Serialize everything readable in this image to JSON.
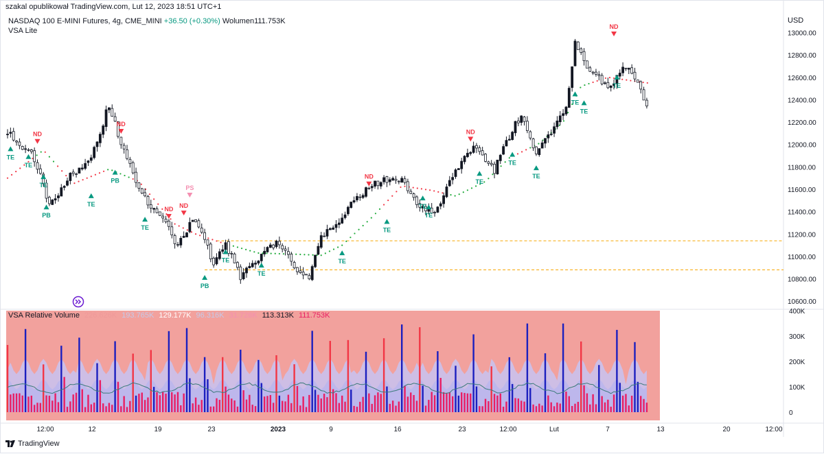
{
  "watermark": "szakal opublikował TradingView.com, Lut 12, 2023 18:51 UTC+1",
  "legend": {
    "symbol_line": "NASDAQ 100 E-MINI Futures, 4g, CME_MINI",
    "change": "+36.50 (+0.30%)",
    "volume": "Wolumen111.753K",
    "indicator": "VSA Lite"
  },
  "currency": "USD",
  "footer": {
    "brand": "TradingView"
  },
  "volume_pane": {
    "title": "VSA Relative Volume",
    "values": [
      "226.626K",
      "193.765K",
      "129.177K",
      "96.316K",
      "31.728K",
      "113.313K",
      "111.753K"
    ],
    "value_colors": [
      "#ef9a9a",
      "#c5cae9",
      "#ffffff",
      "#c5cae9",
      "#f48fb1",
      "#131722",
      "#e91e63"
    ]
  },
  "colors": {
    "up_candle": "#131722",
    "down_candle": "#ffffff",
    "ema_down": "#f23645",
    "ema_up": "#22ab3c",
    "support_line": "#f7a600",
    "te_label": "#089981",
    "nd_label": "#f23645",
    "ps_label": "#f48fb1",
    "vol_bg": "#f2a19d",
    "vol_band": "#c8c3f2",
    "vol_high": "#1b1fbf",
    "vol_red": "#f23645",
    "vol_pink": "#e91e63",
    "vol_ma": "#3b7a7a"
  },
  "chart_data": {
    "type": "candlestick",
    "price_axis": {
      "ticks": [
        "13000.00",
        "12800.00",
        "12600.00",
        "12400.00",
        "12200.00",
        "12000.00",
        "11800.00",
        "11600.00",
        "11400.00",
        "11200.00",
        "11000.00",
        "10800.00",
        "10600.00"
      ],
      "ylim": [
        10540,
        13150
      ]
    },
    "volume_axis": {
      "ticks": [
        "400K",
        "300K",
        "200K",
        "100K",
        "0"
      ],
      "ylim": [
        0,
        400000
      ]
    },
    "time_axis": [
      "12:00",
      "12",
      "19",
      "23",
      "2023",
      "9",
      "16",
      "23",
      "12:00",
      "Lut",
      "7",
      "13",
      "20",
      "12:00"
    ],
    "price_path": [
      [
        0,
        12100
      ],
      [
        5,
        11980
      ],
      [
        9,
        11880
      ],
      [
        14,
        11450
      ],
      [
        20,
        11700
      ],
      [
        28,
        11880
      ],
      [
        34,
        12360
      ],
      [
        38,
        12020
      ],
      [
        43,
        11650
      ],
      [
        48,
        11430
      ],
      [
        53,
        11280
      ],
      [
        57,
        11100
      ],
      [
        62,
        11340
      ],
      [
        66,
        11130
      ],
      [
        69,
        10950
      ],
      [
        73,
        11120
      ],
      [
        78,
        10820
      ],
      [
        84,
        10980
      ],
      [
        90,
        11130
      ],
      [
        96,
        10920
      ],
      [
        101,
        10800
      ],
      [
        105,
        11180
      ],
      [
        110,
        11300
      ],
      [
        117,
        11530
      ],
      [
        125,
        11680
      ],
      [
        132,
        11700
      ],
      [
        138,
        11450
      ],
      [
        143,
        11380
      ],
      [
        150,
        11760
      ],
      [
        156,
        12000
      ],
      [
        163,
        11770
      ],
      [
        168,
        12080
      ],
      [
        172,
        12270
      ],
      [
        177,
        11930
      ],
      [
        182,
        12120
      ],
      [
        187,
        12320
      ],
      [
        190,
        12930
      ],
      [
        195,
        12650
      ],
      [
        202,
        12520
      ],
      [
        206,
        12720
      ],
      [
        210,
        12610
      ],
      [
        214,
        12320
      ]
    ],
    "ema_path": [
      [
        0,
        11700
      ],
      [
        12,
        11950
      ],
      [
        22,
        11650
      ],
      [
        34,
        11780
      ],
      [
        44,
        11670
      ],
      [
        56,
        11290
      ],
      [
        63,
        11200
      ],
      [
        72,
        11120
      ],
      [
        84,
        11030
      ],
      [
        96,
        11020
      ],
      [
        105,
        11010
      ],
      [
        112,
        11100
      ],
      [
        122,
        11350
      ],
      [
        132,
        11630
      ],
      [
        142,
        11590
      ],
      [
        150,
        11540
      ],
      [
        160,
        11670
      ],
      [
        168,
        11880
      ],
      [
        178,
        12010
      ],
      [
        186,
        12200
      ],
      [
        192,
        12520
      ],
      [
        201,
        12600
      ],
      [
        214,
        12550
      ]
    ],
    "ema_turns_red_at": [
      [
        0,
        9
      ],
      [
        12,
        13
      ],
      [
        16,
        33
      ],
      [
        42,
        74
      ],
      [
        126,
        146
      ],
      [
        170,
        174
      ],
      [
        196,
        214
      ]
    ],
    "support_levels": [
      {
        "price": 11140,
        "from": 70,
        "to": 214
      },
      {
        "price": 10880,
        "from": 66,
        "to": 214
      }
    ],
    "signals": [
      {
        "label": "TE",
        "bar": 1,
        "price": 11990,
        "dir": "up"
      },
      {
        "label": "TE",
        "bar": 7,
        "price": 11920,
        "dir": "up"
      },
      {
        "label": "ND",
        "bar": 10,
        "price": 12000,
        "dir": "down"
      },
      {
        "label": "TE",
        "bar": 12,
        "price": 11740,
        "dir": "up"
      },
      {
        "label": "PB",
        "bar": 13,
        "price": 11470,
        "dir": "up"
      },
      {
        "label": "TE",
        "bar": 28,
        "price": 11570,
        "dir": "up"
      },
      {
        "label": "ND",
        "bar": 38,
        "price": 12090,
        "dir": "down"
      },
      {
        "label": "PB",
        "bar": 36,
        "price": 11780,
        "dir": "up"
      },
      {
        "label": "TE",
        "bar": 46,
        "price": 11360,
        "dir": "up"
      },
      {
        "label": "ND",
        "bar": 54,
        "price": 11330,
        "dir": "down"
      },
      {
        "label": "ND",
        "bar": 59,
        "price": 11360,
        "dir": "down"
      },
      {
        "label": "PS",
        "bar": 61,
        "price": 11520,
        "dir": "down"
      },
      {
        "label": "PB",
        "bar": 66,
        "price": 10840,
        "dir": "up"
      },
      {
        "label": "TE",
        "bar": 73,
        "price": 11070,
        "dir": "up"
      },
      {
        "label": "TE",
        "bar": 85,
        "price": 10950,
        "dir": "up"
      },
      {
        "label": "ND",
        "bar": 121,
        "price": 11620,
        "dir": "down"
      },
      {
        "label": "TE",
        "bar": 112,
        "price": 11060,
        "dir": "up"
      },
      {
        "label": "TE",
        "bar": 127,
        "price": 11340,
        "dir": "up"
      },
      {
        "label": "TE",
        "bar": 139,
        "price": 11550,
        "dir": "up"
      },
      {
        "label": "TE",
        "bar": 141,
        "price": 11470,
        "dir": "up"
      },
      {
        "label": "ND",
        "bar": 155,
        "price": 12020,
        "dir": "down"
      },
      {
        "label": "TE",
        "bar": 158,
        "price": 11770,
        "dir": "up"
      },
      {
        "label": "TE",
        "bar": 169,
        "price": 11940,
        "dir": "up"
      },
      {
        "label": "TE",
        "bar": 177,
        "price": 11820,
        "dir": "up"
      },
      {
        "label": "TE",
        "bar": 190,
        "price": 12480,
        "dir": "up"
      },
      {
        "label": "TE",
        "bar": 193,
        "price": 12400,
        "dir": "up"
      },
      {
        "label": "ND",
        "bar": 203,
        "price": 12960,
        "dir": "down"
      },
      {
        "label": "TE",
        "bar": 204,
        "price": 12630,
        "dir": "up"
      }
    ]
  }
}
